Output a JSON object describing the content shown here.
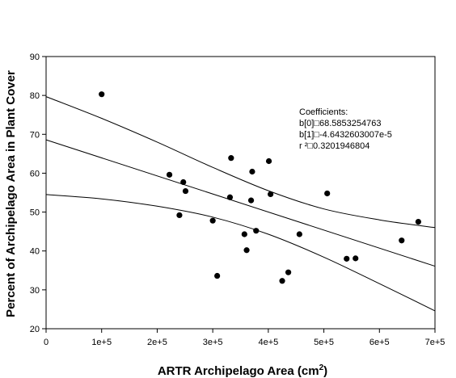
{
  "chart_data": {
    "type": "scatter",
    "xlabel": "ARTR Archipelago Area (cm",
    "xlabel_sup": "2",
    "xlabel_close": ")",
    "ylabel": "Percent of Archipelago Area in Plant Cover",
    "xlim": [
      0,
      700000
    ],
    "ylim": [
      20,
      90
    ],
    "x_ticks": [
      {
        "value": 0,
        "label": "0"
      },
      {
        "value": 100000,
        "label": "1e+5"
      },
      {
        "value": 200000,
        "label": "2e+5"
      },
      {
        "value": 300000,
        "label": "3e+5"
      },
      {
        "value": 400000,
        "label": "4e+5"
      },
      {
        "value": 500000,
        "label": "5e+5"
      },
      {
        "value": 600000,
        "label": "6e+5"
      },
      {
        "value": 700000,
        "label": "7e+5"
      }
    ],
    "y_ticks": [
      {
        "value": 20,
        "label": "20"
      },
      {
        "value": 30,
        "label": "30"
      },
      {
        "value": 40,
        "label": "40"
      },
      {
        "value": 50,
        "label": "50"
      },
      {
        "value": 60,
        "label": "60"
      },
      {
        "value": 70,
        "label": "70"
      },
      {
        "value": 80,
        "label": "80"
      },
      {
        "value": 90,
        "label": "90"
      }
    ],
    "points": [
      {
        "x": 100000,
        "y": 80.3
      },
      {
        "x": 222000,
        "y": 59.6
      },
      {
        "x": 240000,
        "y": 49.2
      },
      {
        "x": 247000,
        "y": 57.7
      },
      {
        "x": 251000,
        "y": 55.4
      },
      {
        "x": 300000,
        "y": 47.8
      },
      {
        "x": 308000,
        "y": 33.6
      },
      {
        "x": 331000,
        "y": 53.8
      },
      {
        "x": 333000,
        "y": 63.9
      },
      {
        "x": 357000,
        "y": 44.3
      },
      {
        "x": 361000,
        "y": 40.2
      },
      {
        "x": 369000,
        "y": 53.0
      },
      {
        "x": 371000,
        "y": 60.4
      },
      {
        "x": 378000,
        "y": 45.2
      },
      {
        "x": 401000,
        "y": 63.1
      },
      {
        "x": 404000,
        "y": 54.6
      },
      {
        "x": 425000,
        "y": 32.3
      },
      {
        "x": 436000,
        "y": 34.5
      },
      {
        "x": 456000,
        "y": 44.3
      },
      {
        "x": 506000,
        "y": 54.8
      },
      {
        "x": 541000,
        "y": 38.0
      },
      {
        "x": 557000,
        "y": 38.1
      },
      {
        "x": 640000,
        "y": 42.7
      },
      {
        "x": 670000,
        "y": 47.5
      }
    ],
    "regression": {
      "intercept": 68.5853254763,
      "slope": -4.6432603007e-05
    },
    "band_upper": [
      {
        "x": 0,
        "y": 79.7
      },
      {
        "x": 100000,
        "y": 74.1
      },
      {
        "x": 200000,
        "y": 68.0
      },
      {
        "x": 300000,
        "y": 61.5
      },
      {
        "x": 400000,
        "y": 55.5
      },
      {
        "x": 500000,
        "y": 50.8
      },
      {
        "x": 600000,
        "y": 48.0
      },
      {
        "x": 700000,
        "y": 46.0
      }
    ],
    "band_lower": [
      {
        "x": 0,
        "y": 54.5
      },
      {
        "x": 100000,
        "y": 53.4
      },
      {
        "x": 200000,
        "y": 51.5
      },
      {
        "x": 300000,
        "y": 48.7
      },
      {
        "x": 400000,
        "y": 44.3
      },
      {
        "x": 500000,
        "y": 38.4
      },
      {
        "x": 600000,
        "y": 31.6
      },
      {
        "x": 700000,
        "y": 24.6
      }
    ],
    "annotation": [
      "Coefficients:",
      "b[0]□68.5853254763",
      "b[1]□-4.6432603007e-5",
      "r ²□0.3201946804"
    ],
    "grid": false,
    "legend": "none"
  }
}
